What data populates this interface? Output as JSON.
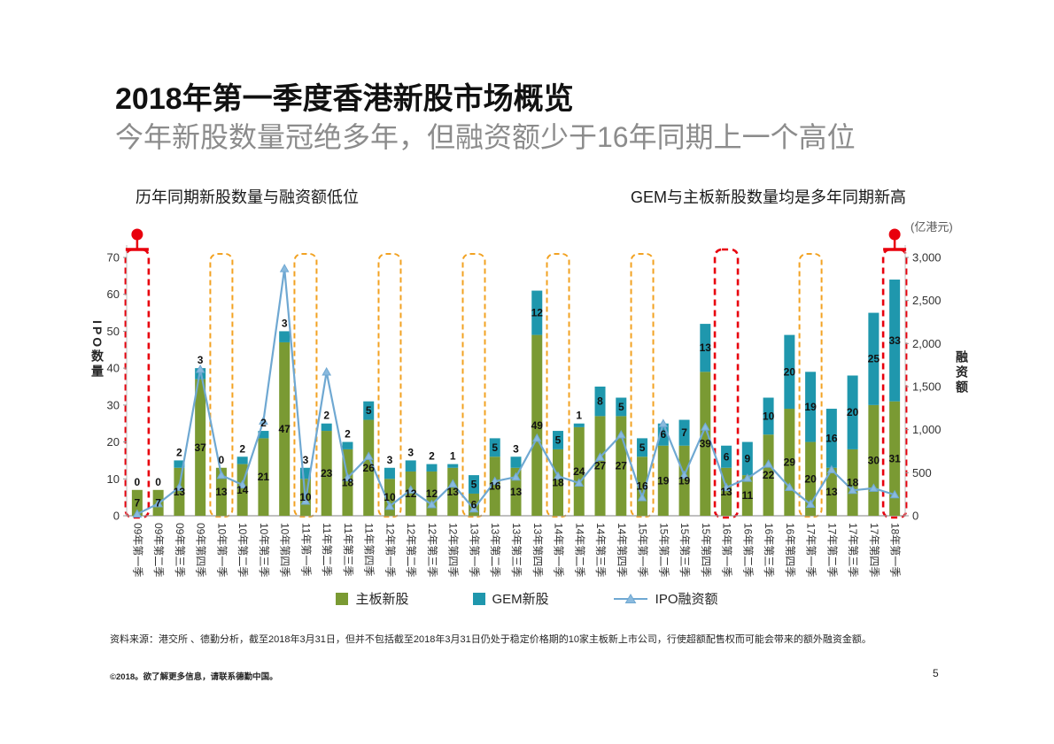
{
  "page": {
    "title": "2018年第一季度香港新股市场概览",
    "subtitle": "今年新股数量冠绝多年，但融资额少于16年同期上一个高位",
    "annotation_left": "历年同期新股数量与融资额低位",
    "annotation_right": "GEM与主板新股数量均是多年同期新高",
    "footnote": "资料来源：港交所 、德勤分析，截至2018年3月31日，但并不包括截至2018年3月31日仍处于稳定价格期的10家主板新上市公司，行使超额配售权而可能会带来的额外融资金额。",
    "footer": "©2018。欲了解更多信息，请联系德勤中国。",
    "page_number": "5"
  },
  "colors": {
    "main_board": "#7a9a33",
    "gem": "#1f97ad",
    "line": "#6fa8d2",
    "line_marker": "#8abade",
    "red": "#e8000d",
    "orange": "#f2a222"
  },
  "chart_data": {
    "type": "bar",
    "subtype": "stacked-bars-with-line",
    "title": "",
    "grid": false,
    "legend_position": "bottom",
    "categories": [
      "09年第一季",
      "09年第二季",
      "09年第三季",
      "09年第四季",
      "10年第一季",
      "10年第二季",
      "10年第三季",
      "10年第四季",
      "11年第一季",
      "11年第二季",
      "11年第三季",
      "11年第四季",
      "12年第一季",
      "12年第二季",
      "12年第三季",
      "12年第四季",
      "13年第一季",
      "13年第二季",
      "13年第三季",
      "13年第四季",
      "14年第一季",
      "14年第二季",
      "14年第三季",
      "14年第四季",
      "15年第一季",
      "15年第二季",
      "15年第三季",
      "15年第四季",
      "16年第一季",
      "16年第二季",
      "16年第三季",
      "16年第四季",
      "17年第一季",
      "17年第二季",
      "17年第三季",
      "17年第四季",
      "18年第一季"
    ],
    "series": [
      {
        "name": "主板新股",
        "type": "bar",
        "values": [
          7,
          7,
          13,
          37,
          13,
          14,
          21,
          47,
          10,
          23,
          18,
          26,
          10,
          12,
          12,
          13,
          6,
          16,
          13,
          49,
          18,
          24,
          27,
          27,
          16,
          19,
          19,
          39,
          13,
          11,
          22,
          29,
          20,
          13,
          18,
          30,
          31
        ]
      },
      {
        "name": "GEM新股",
        "type": "bar",
        "values": [
          0,
          0,
          2,
          3,
          0,
          2,
          2,
          3,
          3,
          2,
          2,
          5,
          3,
          3,
          2,
          1,
          5,
          5,
          3,
          12,
          5,
          1,
          8,
          5,
          5,
          6,
          7,
          13,
          6,
          9,
          10,
          20,
          19,
          16,
          20,
          25,
          33
        ]
      },
      {
        "name": "IPO融资额",
        "type": "line",
        "axis": "right",
        "values": [
          20,
          140,
          330,
          1700,
          470,
          360,
          1100,
          2870,
          170,
          1670,
          440,
          690,
          110,
          300,
          130,
          370,
          80,
          400,
          450,
          900,
          460,
          380,
          680,
          940,
          210,
          1070,
          470,
          1030,
          327,
          435,
          600,
          330,
          133,
          534,
          295,
          320,
          244
        ]
      }
    ],
    "left_axis": {
      "label": "IPO数量",
      "min": 0,
      "max": 70,
      "ticks": [
        0,
        10,
        20,
        30,
        40,
        50,
        60,
        70
      ]
    },
    "right_axis": {
      "label": "融资额",
      "unit": "(亿港元)",
      "min": 0,
      "max": 3000,
      "ticks": [
        "0",
        "500",
        "1,000",
        "1,500",
        "2,000",
        "2,500",
        "3,000"
      ]
    },
    "highlights": {
      "red_boxed_quarters": [
        "09年第一季",
        "16年第一季",
        "18年第一季"
      ],
      "orange_boxed_quarters": [
        "10年第一季",
        "11年第一季",
        "12年第一季",
        "13年第一季",
        "14年第一季",
        "15年第一季",
        "17年第一季"
      ],
      "pinned_quarters": [
        "09年第一季",
        "18年第一季"
      ]
    }
  }
}
